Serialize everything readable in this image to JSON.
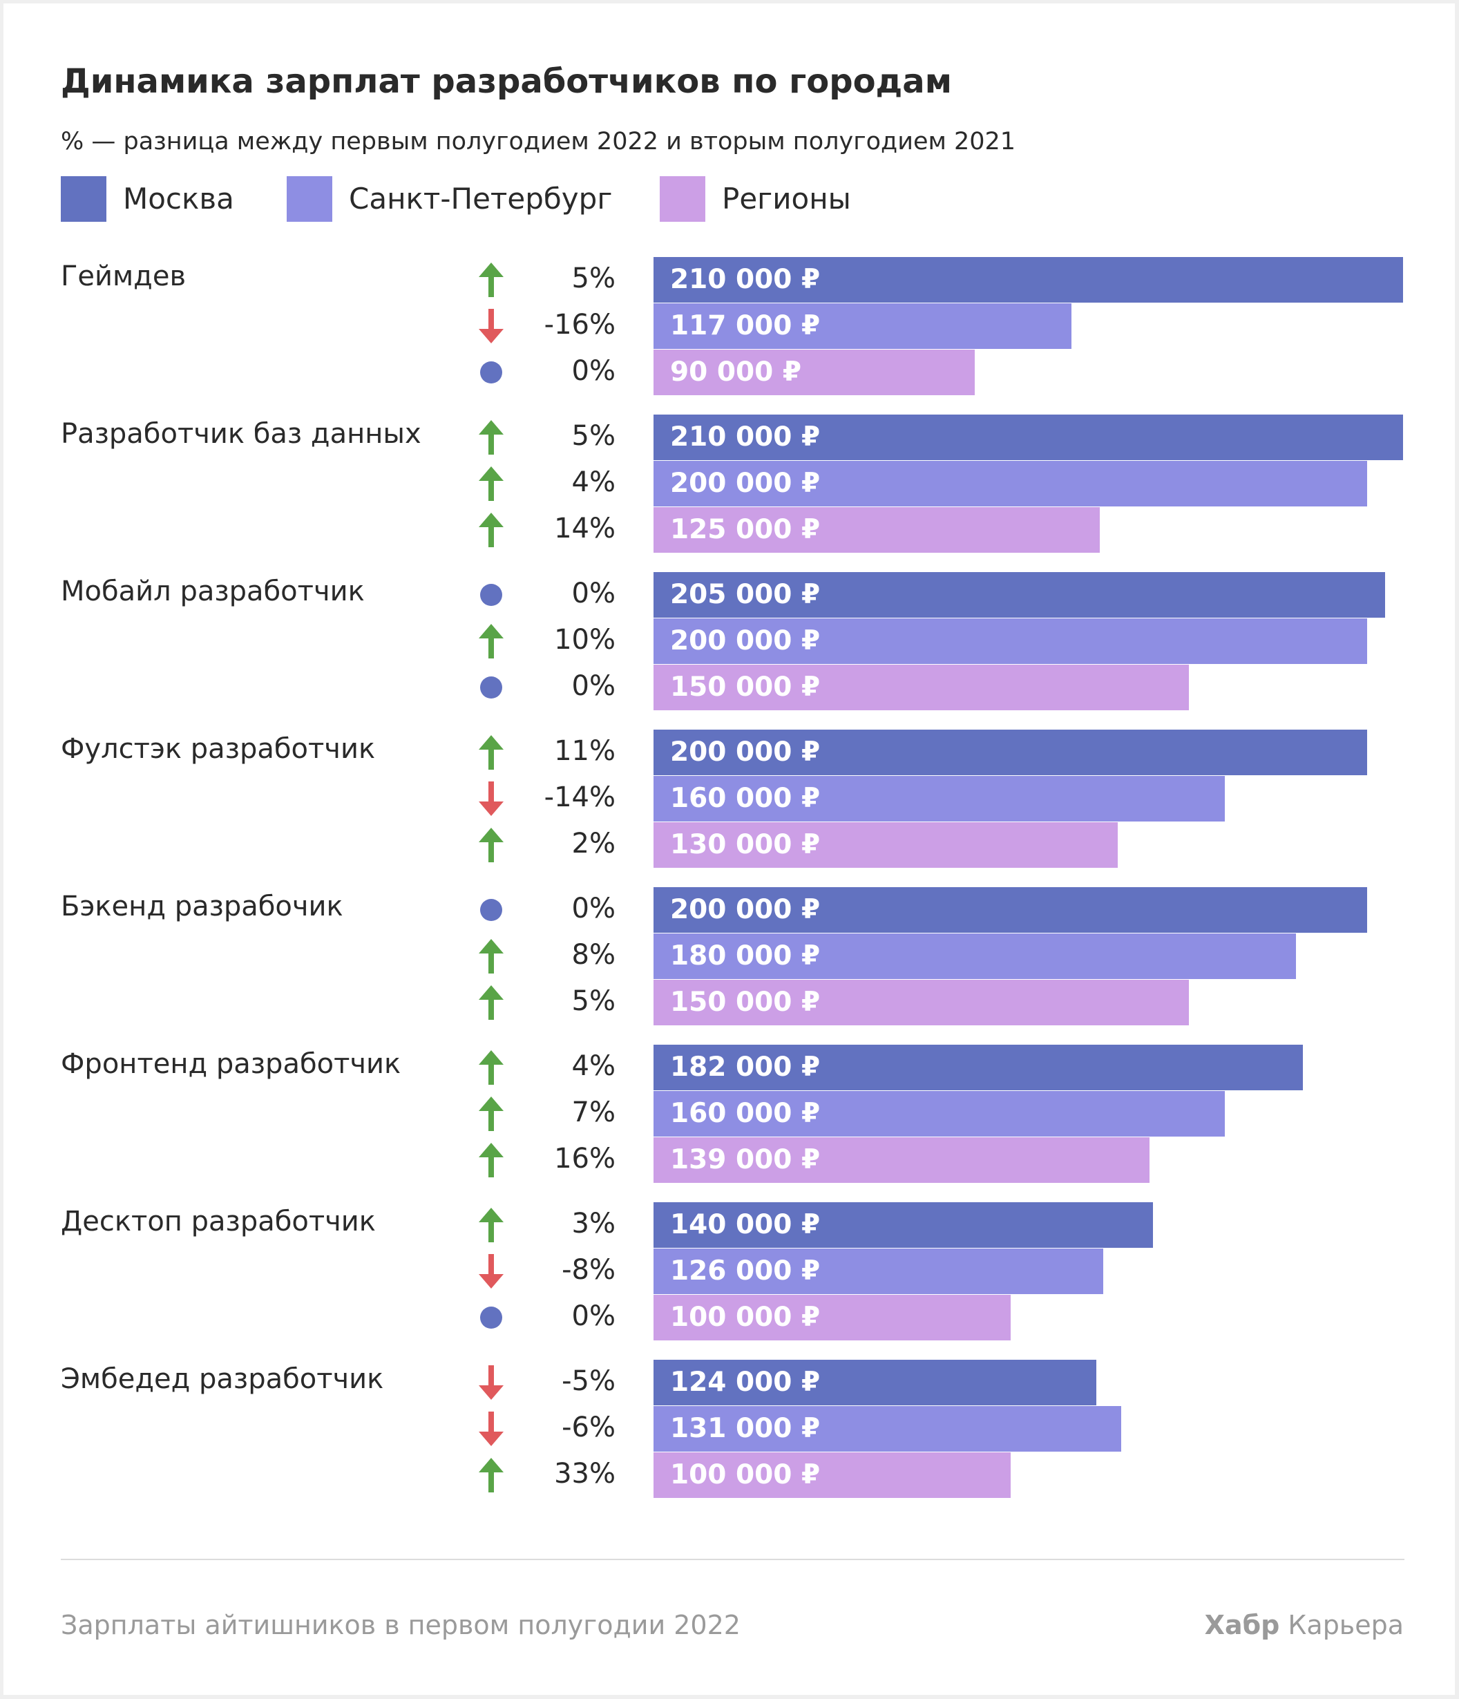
{
  "title": "Динамика зарплат разработчиков по городам",
  "subtitle": "% — разница между первым полугодием 2022 и вторым полугодием 2021",
  "colors": {
    "moscow": "#6272c0",
    "spb": "#8e8ee3",
    "regions": "#cc9fe6",
    "up": "#59a447",
    "down": "#e0595c",
    "neutral": "#6272c0"
  },
  "chart_data": {
    "type": "bar",
    "orientation": "horizontal",
    "title": "Динамика зарплат разработчиков по городам",
    "subtitle": "% — разница между первым полугодием 2022 и вторым полугодием 2021",
    "xlabel": "",
    "ylabel": "",
    "xlim": [
      0,
      210000
    ],
    "grid": false,
    "legend_position": "top-left",
    "categories": [
      "Геймдев",
      "Разработчик баз данных",
      "Мобайл разработчик",
      "Фулстэк разработчик",
      "Бэкенд разрабочик",
      "Фронтенд разработчик",
      "Десктоп разработчик",
      "Эмбедед разработчик"
    ],
    "series": [
      {
        "name": "Москва",
        "values": [
          210000,
          210000,
          205000,
          200000,
          200000,
          182000,
          140000,
          124000
        ],
        "value_labels": [
          "210 000 ₽",
          "210 000 ₽",
          "205 000 ₽",
          "200 000 ₽",
          "200 000 ₽",
          "182 000 ₽",
          "140 000 ₽",
          "124 000 ₽"
        ],
        "change_labels": [
          "5%",
          "5%",
          "0%",
          "11%",
          "0%",
          "4%",
          "3%",
          "-5%"
        ],
        "changes": [
          5,
          5,
          0,
          11,
          0,
          4,
          3,
          -5
        ]
      },
      {
        "name": "Санкт-Петербург",
        "values": [
          117000,
          200000,
          200000,
          160000,
          180000,
          160000,
          126000,
          131000
        ],
        "value_labels": [
          "117 000 ₽",
          "200 000 ₽",
          "200 000 ₽",
          "160 000 ₽",
          "180 000 ₽",
          "160 000 ₽",
          "126 000 ₽",
          "131 000 ₽"
        ],
        "change_labels": [
          "-16%",
          "4%",
          "10%",
          "-14%",
          "8%",
          "7%",
          "-8%",
          "-6%"
        ],
        "changes": [
          -16,
          4,
          10,
          -14,
          8,
          7,
          -8,
          -6
        ]
      },
      {
        "name": "Регионы",
        "values": [
          90000,
          125000,
          150000,
          130000,
          150000,
          139000,
          100000,
          100000
        ],
        "value_labels": [
          "90 000 ₽",
          "125 000 ₽",
          "150 000 ₽",
          "130 000 ₽",
          "150 000 ₽",
          "139 000 ₽",
          "100 000 ₽",
          "100 000 ₽"
        ],
        "change_labels": [
          "0%",
          "14%",
          "0%",
          "2%",
          "5%",
          "16%",
          "0%",
          "33%"
        ],
        "changes": [
          0,
          14,
          0,
          2,
          5,
          16,
          0,
          33
        ]
      }
    ]
  },
  "footer": {
    "source": "Зарплаты айтишников в первом полугодии 2022",
    "brand_bold": "Хабр",
    "brand_rest": " Карьера"
  }
}
